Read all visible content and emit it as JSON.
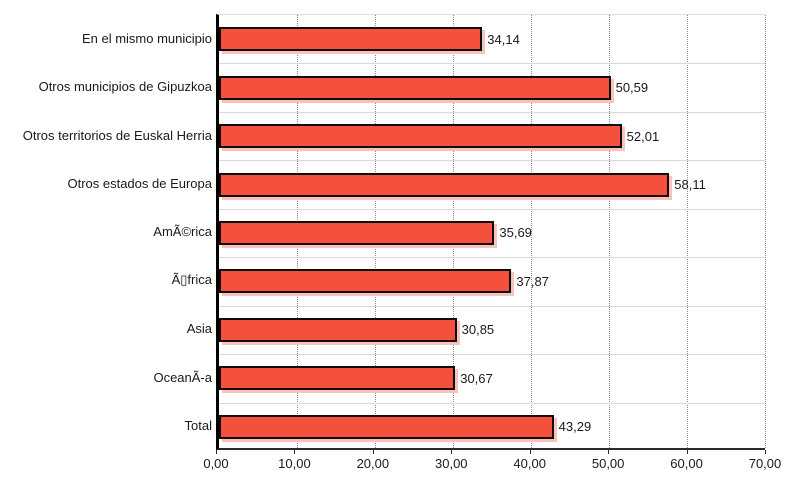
{
  "chart_data": {
    "type": "bar",
    "orientation": "horizontal",
    "title": "",
    "xlabel": "",
    "ylabel": "",
    "xlim": [
      0,
      70
    ],
    "grid": "vertical-dotted-and-row-boundaries",
    "legend": "none",
    "bar_color": "#f4503c",
    "bar_border_color": "#0d0d0d",
    "bar_shadow_color": "#f8c3b8",
    "axis_color": "#000000",
    "categories": [
      "En el mismo municipio",
      "Otros municipios de Gipuzkoa",
      "Otros territorios de Euskal Herria",
      "Otros estados de Europa",
      "AmÃ©rica",
      "Ã▯frica",
      "Asia",
      "OceanÃ-a",
      "Total"
    ],
    "values": [
      34.14,
      50.59,
      52.01,
      58.11,
      35.69,
      37.87,
      30.85,
      30.67,
      43.29
    ],
    "value_labels": [
      "34,14",
      "50,59",
      "52,01",
      "58,11",
      "35,69",
      "37,87",
      "30,85",
      "30,67",
      "43,29"
    ],
    "x_ticks": [
      {
        "value": 0,
        "label": "0,00"
      },
      {
        "value": 10,
        "label": "10,00"
      },
      {
        "value": 20,
        "label": "20,00"
      },
      {
        "value": 30,
        "label": "30,00"
      },
      {
        "value": 40,
        "label": "40,00"
      },
      {
        "value": 50,
        "label": "50,00"
      },
      {
        "value": 60,
        "label": "60,00"
      },
      {
        "value": 70,
        "label": "70,00"
      }
    ]
  }
}
